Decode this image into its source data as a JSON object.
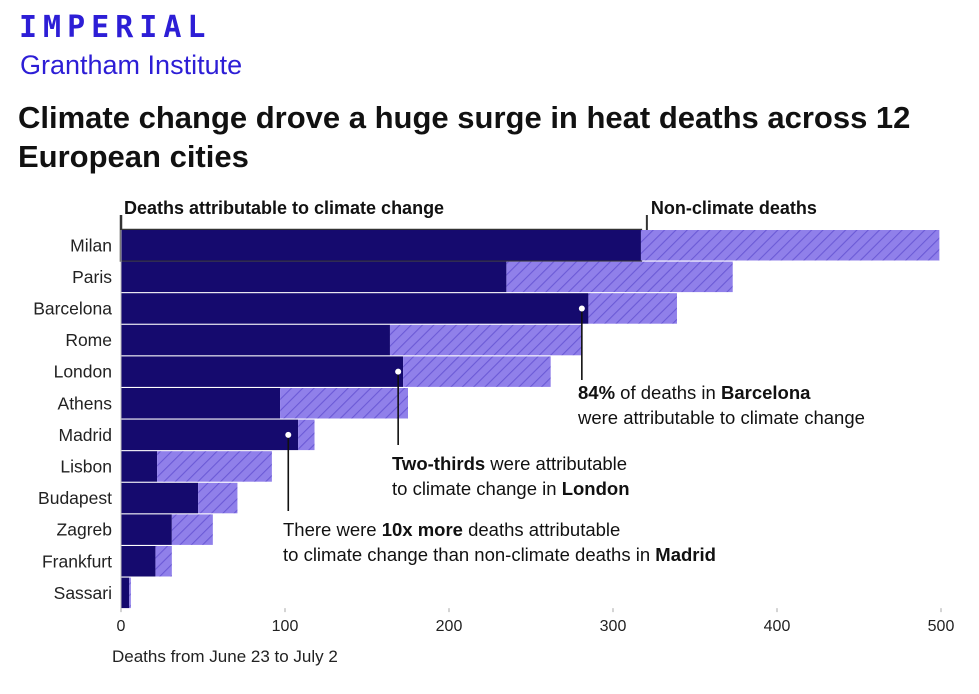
{
  "header": {
    "logo_top": "IMPERIAL",
    "logo_bottom": "Grantham Institute",
    "title": "Climate change drove a huge surge in heat deaths across 12 European cities"
  },
  "colors": {
    "climate": "#150a6e",
    "non_climate": "#9080ea",
    "hatch": "#6b5ad6",
    "brand": "#2d1ed6"
  },
  "chart_data": {
    "type": "bar",
    "orientation": "horizontal",
    "stacked": true,
    "categories": [
      "Milan",
      "Paris",
      "Barcelona",
      "Rome",
      "London",
      "Athens",
      "Madrid",
      "Lisbon",
      "Budapest",
      "Zagreb",
      "Frankfurt",
      "Sassari"
    ],
    "series": [
      {
        "name": "Deaths attributable to climate change",
        "values": [
          317,
          235,
          285,
          164,
          172,
          97,
          108,
          22,
          47,
          31,
          21,
          5
        ]
      },
      {
        "name": "Non-climate deaths",
        "values": [
          182,
          138,
          54,
          117,
          90,
          78,
          10,
          70,
          24,
          25,
          10,
          1
        ]
      }
    ],
    "xlabel": "Deaths from June 23 to July 2",
    "xlim": [
      0,
      500
    ],
    "xticks": [
      0,
      100,
      200,
      300,
      400,
      500
    ],
    "annotations": [
      {
        "city": "Barcelona",
        "value": 281,
        "lines": [
          [
            {
              "t": "84%",
              "b": true
            },
            {
              "t": " of deaths in ",
              "b": false
            },
            {
              "t": "Barcelona",
              "b": true
            }
          ],
          [
            {
              "t": "were attributable to climate change",
              "b": false
            }
          ]
        ]
      },
      {
        "city": "London",
        "value": 169,
        "lines": [
          [
            {
              "t": "Two-thirds",
              "b": true
            },
            {
              "t": " were attributable",
              "b": false
            }
          ],
          [
            {
              "t": "to climate change in ",
              "b": false
            },
            {
              "t": "London",
              "b": true
            }
          ]
        ]
      },
      {
        "city": "Madrid",
        "value": 102,
        "lines": [
          [
            {
              "t": "There were ",
              "b": false
            },
            {
              "t": "10x more",
              "b": true
            },
            {
              "t": " deaths attributable",
              "b": false
            }
          ],
          [
            {
              "t": "to climate change than non-climate deaths in ",
              "b": false
            },
            {
              "t": "Madrid",
              "b": true
            }
          ]
        ]
      }
    ]
  }
}
